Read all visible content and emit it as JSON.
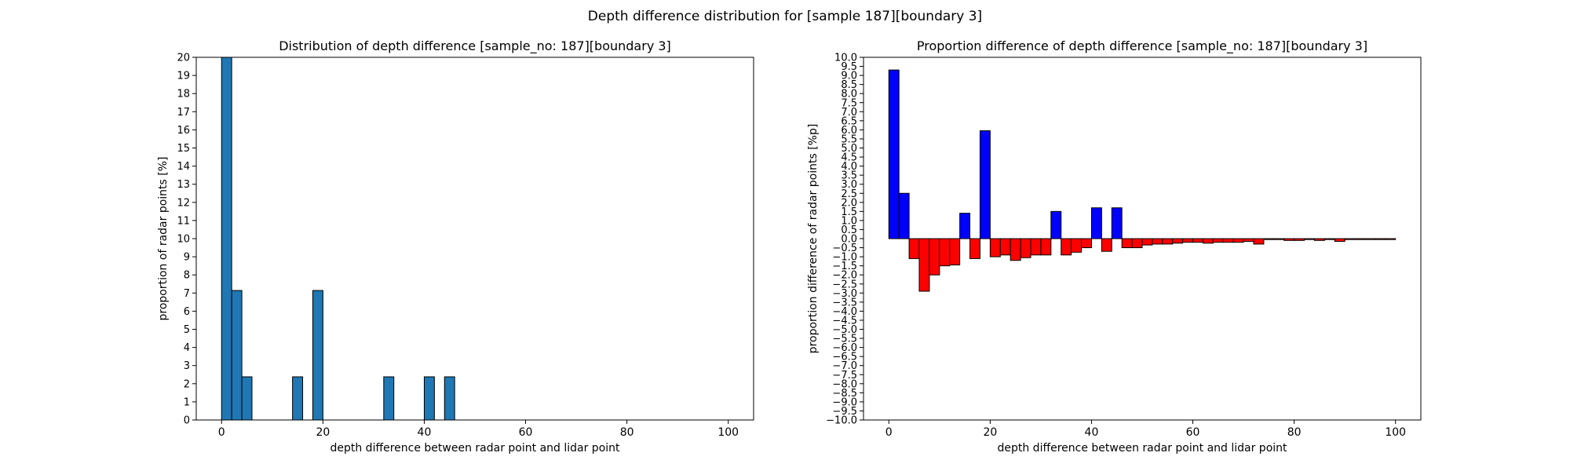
{
  "figure": {
    "suptitle": "Depth difference distribution for [sample 187][boundary 3]"
  },
  "chart_data": [
    {
      "type": "bar",
      "title": "Distribution of depth difference [sample_no: 187][boundary 3]",
      "xlabel": "depth difference between radar point and lidar point",
      "ylabel": "proportion of radar points [%]",
      "xlim": [
        -5,
        105
      ],
      "ylim": [
        0,
        20
      ],
      "xticks": [
        0,
        20,
        40,
        60,
        80,
        100
      ],
      "yticks": [
        0,
        1,
        2,
        3,
        4,
        5,
        6,
        7,
        8,
        9,
        10,
        11,
        12,
        13,
        14,
        15,
        16,
        17,
        18,
        19,
        20
      ],
      "bin_width": 2,
      "bar_color": "#1f77b4",
      "edge_color": "#000000",
      "bars": [
        {
          "x": 0,
          "value": 20.0
        },
        {
          "x": 2,
          "value": 7.14
        },
        {
          "x": 4,
          "value": 2.38
        },
        {
          "x": 14,
          "value": 2.38
        },
        {
          "x": 18,
          "value": 7.14
        },
        {
          "x": 32,
          "value": 2.38
        },
        {
          "x": 40,
          "value": 2.38
        },
        {
          "x": 44,
          "value": 2.38
        }
      ]
    },
    {
      "type": "bar",
      "title": "Proportion difference of depth difference [sample_no: 187][boundary 3]",
      "xlabel": "depth difference between radar point and lidar point",
      "ylabel": "proportion difference of radar points [%p]",
      "xlim": [
        -5,
        105
      ],
      "ylim": [
        -10,
        10
      ],
      "xticks": [
        0,
        20,
        40,
        60,
        80,
        100
      ],
      "yticks": [
        -10,
        -9.5,
        -9,
        -8.5,
        -8,
        -7.5,
        -7,
        -6.5,
        -6,
        -5.5,
        -5,
        -4.5,
        -4,
        -3.5,
        -3,
        -2.5,
        -2,
        -1.5,
        -1,
        -0.5,
        0,
        0.5,
        1,
        1.5,
        2,
        2.5,
        3,
        3.5,
        4,
        4.5,
        5,
        5.5,
        6,
        6.5,
        7,
        7.5,
        8,
        8.5,
        9,
        9.5,
        10
      ],
      "bin_width": 2,
      "positive_color": "#0000ff",
      "negative_color": "#ff0000",
      "edge_color": "#000000",
      "bars": [
        {
          "x": 0,
          "value": 9.3
        },
        {
          "x": 2,
          "value": 2.5
        },
        {
          "x": 4,
          "value": -1.1
        },
        {
          "x": 6,
          "value": -2.9
        },
        {
          "x": 8,
          "value": -2.0
        },
        {
          "x": 10,
          "value": -1.5
        },
        {
          "x": 12,
          "value": -1.45
        },
        {
          "x": 14,
          "value": 1.4
        },
        {
          "x": 16,
          "value": -1.1
        },
        {
          "x": 18,
          "value": 5.95
        },
        {
          "x": 20,
          "value": -1.0
        },
        {
          "x": 22,
          "value": -0.9
        },
        {
          "x": 24,
          "value": -1.2
        },
        {
          "x": 26,
          "value": -1.05
        },
        {
          "x": 28,
          "value": -0.9
        },
        {
          "x": 30,
          "value": -0.9
        },
        {
          "x": 32,
          "value": 1.5
        },
        {
          "x": 34,
          "value": -0.9
        },
        {
          "x": 36,
          "value": -0.75
        },
        {
          "x": 38,
          "value": -0.5
        },
        {
          "x": 40,
          "value": 1.7
        },
        {
          "x": 42,
          "value": -0.7
        },
        {
          "x": 44,
          "value": 1.7
        },
        {
          "x": 46,
          "value": -0.5
        },
        {
          "x": 48,
          "value": -0.5
        },
        {
          "x": 50,
          "value": -0.35
        },
        {
          "x": 52,
          "value": -0.3
        },
        {
          "x": 54,
          "value": -0.3
        },
        {
          "x": 56,
          "value": -0.25
        },
        {
          "x": 58,
          "value": -0.2
        },
        {
          "x": 60,
          "value": -0.2
        },
        {
          "x": 62,
          "value": -0.25
        },
        {
          "x": 64,
          "value": -0.2
        },
        {
          "x": 66,
          "value": -0.2
        },
        {
          "x": 68,
          "value": -0.2
        },
        {
          "x": 70,
          "value": -0.15
        },
        {
          "x": 72,
          "value": -0.3
        },
        {
          "x": 74,
          "value": -0.05
        },
        {
          "x": 76,
          "value": -0.05
        },
        {
          "x": 78,
          "value": -0.1
        },
        {
          "x": 80,
          "value": -0.1
        },
        {
          "x": 82,
          "value": -0.05
        },
        {
          "x": 84,
          "value": -0.1
        },
        {
          "x": 86,
          "value": -0.05
        },
        {
          "x": 88,
          "value": -0.15
        },
        {
          "x": 90,
          "value": -0.05
        },
        {
          "x": 92,
          "value": -0.05
        },
        {
          "x": 94,
          "value": -0.05
        },
        {
          "x": 96,
          "value": -0.05
        },
        {
          "x": 98,
          "value": -0.05
        }
      ]
    }
  ]
}
